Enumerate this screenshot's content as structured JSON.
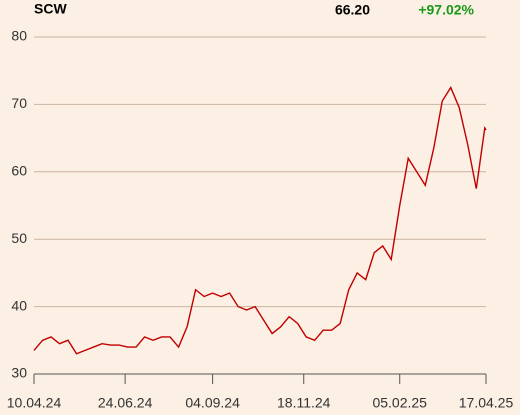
{
  "header": {
    "symbol": "SCW",
    "price": "66.20",
    "change": "+97.02%"
  },
  "chart_data": {
    "type": "line",
    "x": [
      "10.04.24",
      "17.04.24",
      "24.04.24",
      "01.05.24",
      "08.05.24",
      "15.05.24",
      "22.05.24",
      "29.05.24",
      "05.06.24",
      "12.06.24",
      "19.06.24",
      "26.06.24",
      "03.07.24",
      "10.07.24",
      "17.07.24",
      "24.07.24",
      "31.07.24",
      "07.08.24",
      "14.08.24",
      "21.08.24",
      "28.08.24",
      "04.09.24",
      "11.09.24",
      "18.09.24",
      "25.09.24",
      "02.10.24",
      "09.10.24",
      "16.10.24",
      "23.10.24",
      "30.10.24",
      "06.11.24",
      "13.11.24",
      "20.11.24",
      "27.11.24",
      "04.12.24",
      "11.12.24",
      "18.12.24",
      "25.12.24",
      "01.01.25",
      "08.01.25",
      "15.01.25",
      "22.01.25",
      "29.01.25",
      "05.02.25",
      "12.02.25",
      "19.02.25",
      "26.02.25",
      "05.03.25",
      "12.03.25",
      "19.03.25",
      "26.03.25",
      "02.04.25",
      "09.04.25",
      "16.04.25",
      "17.04.25"
    ],
    "series": [
      {
        "color": "#c00000",
        "values": [
          33.5,
          35,
          35.5,
          34.5,
          35,
          33,
          33.5,
          34,
          34.5,
          34.3,
          34.3,
          34,
          34,
          35.5,
          35,
          35.5,
          35.5,
          34,
          37,
          42.5,
          41.5,
          42,
          41.5,
          42,
          40,
          39.5,
          40,
          38,
          36,
          37,
          38.5,
          37.5,
          35.5,
          35,
          36.5,
          36.5,
          37.5,
          42.5,
          45,
          44,
          48,
          49,
          47,
          55,
          62,
          60,
          58,
          63.5,
          70.5,
          72.5,
          69.5,
          64,
          57.5,
          66.5,
          66.2
        ]
      }
    ],
    "xlim": [
      "10.04.24",
      "17.04.25"
    ],
    "xticks": [
      "10.04.24",
      "24.06.24",
      "04.09.24",
      "18.11.24",
      "05.02.25",
      "17.04.25"
    ],
    "ylim": [
      30,
      80
    ],
    "yticks": [
      30,
      40,
      50,
      60,
      70,
      80
    ],
    "grid": true
  }
}
